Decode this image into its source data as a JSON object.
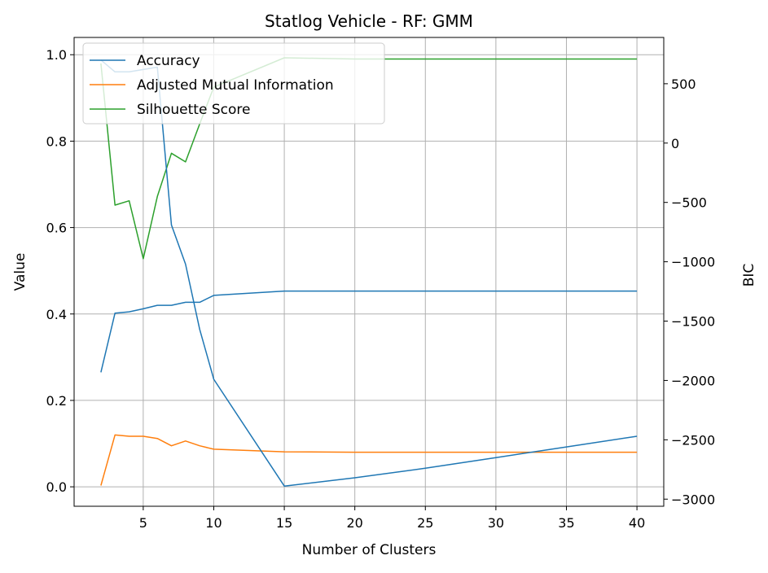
{
  "chart_data": {
    "type": "line",
    "title": "Statlog Vehicle - RF: GMM",
    "xlabel": "Number of Clusters",
    "ylabel": "Value",
    "y2label": "BIC",
    "xlim": [
      0.1,
      41.9
    ],
    "ylim": [
      -0.045,
      1.04
    ],
    "y2lim": [
      -3060,
      890
    ],
    "x_ticks": [
      5,
      10,
      15,
      20,
      25,
      30,
      35,
      40
    ],
    "y_ticks": [
      0.0,
      0.2,
      0.4,
      0.6,
      0.8,
      1.0
    ],
    "y2_ticks": [
      500,
      0,
      -500,
      -1000,
      -1500,
      -2000,
      -2500,
      -3000
    ],
    "grid": true,
    "legend_position": "top-left",
    "series": [
      {
        "name": "Accuracy",
        "axis": "left",
        "color": "#1f77b4",
        "x": [
          2,
          3,
          4,
          5,
          6,
          7,
          8,
          9,
          10,
          15,
          20,
          25,
          30,
          35,
          40
        ],
        "values": [
          0.265,
          0.402,
          0.405,
          0.412,
          0.42,
          0.42,
          0.427,
          0.427,
          0.443,
          0.453,
          0.453,
          0.453,
          0.453,
          0.453,
          0.453
        ]
      },
      {
        "name": "Adjusted Mutual Information",
        "axis": "left",
        "color": "#ff7f0e",
        "x": [
          2,
          3,
          4,
          5,
          6,
          7,
          8,
          9,
          10,
          15,
          20,
          25,
          30,
          35,
          40
        ],
        "values": [
          0.003,
          0.12,
          0.117,
          0.117,
          0.112,
          0.095,
          0.106,
          0.095,
          0.087,
          0.081,
          0.08,
          0.08,
          0.08,
          0.08,
          0.08
        ]
      },
      {
        "name": "Silhouette Score",
        "axis": "left",
        "color": "#2ca02c",
        "x": [
          2,
          3,
          4,
          5,
          6,
          7,
          8,
          9,
          10,
          15,
          20,
          25,
          30,
          35,
          40
        ],
        "values": [
          0.98,
          0.652,
          0.662,
          0.528,
          0.672,
          0.772,
          0.752,
          0.84,
          0.925,
          0.993,
          0.99,
          0.99,
          0.99,
          0.99,
          0.99
        ]
      },
      {
        "name": "BIC",
        "axis": "right",
        "color": "#1f77b4",
        "x": [
          2,
          3,
          4,
          5,
          6,
          7,
          8,
          9,
          10,
          15,
          20,
          25,
          30,
          35,
          40
        ],
        "values": [
          700,
          600,
          600,
          620,
          640,
          -690,
          -1020,
          -1570,
          -1990,
          -2890,
          -2820,
          -2740,
          -2650,
          -2560,
          -2470
        ]
      }
    ]
  }
}
